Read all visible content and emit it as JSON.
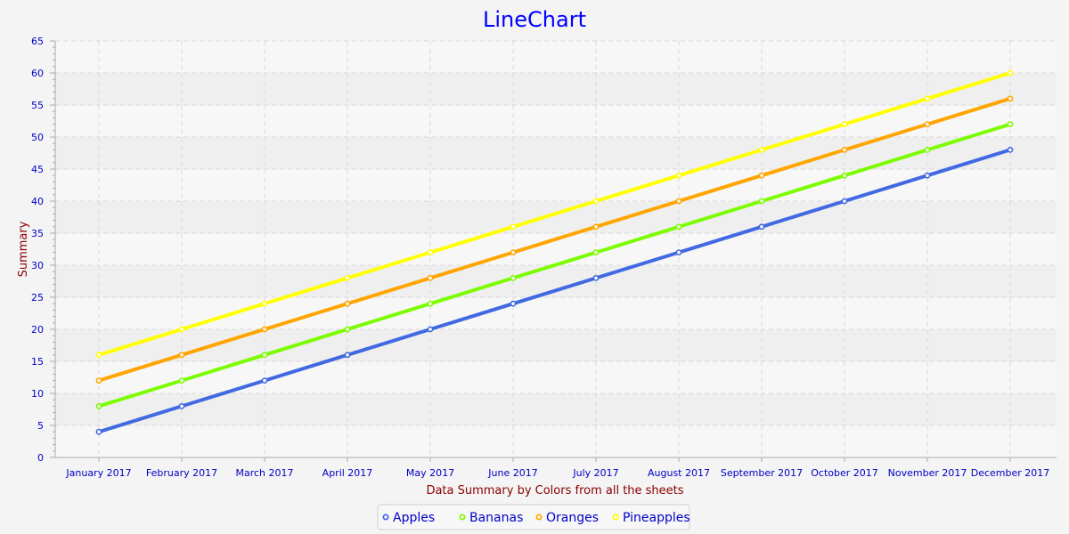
{
  "chart_data": {
    "type": "line",
    "title": "LineChart",
    "xlabel": "Data Summary by Colors from all the sheets",
    "ylabel": "Summary",
    "categories": [
      "January 2017",
      "February 2017",
      "March 2017",
      "April 2017",
      "May 2017",
      "June 2017",
      "July 2017",
      "August 2017",
      "September 2017",
      "October 2017",
      "November 2017",
      "December 2017"
    ],
    "ylim": [
      0,
      65
    ],
    "yticks": [
      0,
      5,
      10,
      15,
      20,
      25,
      30,
      35,
      40,
      45,
      50,
      55,
      60,
      65
    ],
    "grid": true,
    "legend_position": "bottom",
    "series": [
      {
        "name": "Apples",
        "color": "#4169e1",
        "values": [
          4,
          8,
          12,
          16,
          20,
          24,
          28,
          32,
          36,
          40,
          44,
          48
        ]
      },
      {
        "name": "Bananas",
        "color": "#7cfc00",
        "values": [
          8,
          12,
          16,
          20,
          24,
          28,
          32,
          36,
          40,
          44,
          48,
          52
        ]
      },
      {
        "name": "Oranges",
        "color": "#ffa500",
        "values": [
          12,
          16,
          20,
          24,
          28,
          32,
          36,
          40,
          44,
          48,
          52,
          56
        ]
      },
      {
        "name": "Pineapples",
        "color": "#ffff00",
        "values": [
          16,
          20,
          24,
          28,
          32,
          36,
          40,
          44,
          48,
          52,
          56,
          60
        ]
      }
    ]
  },
  "colors": {
    "title": "#0000ff",
    "tick_text": "#0000c8",
    "axis_label": "#8b0000",
    "legend_text": "#0000c8"
  }
}
